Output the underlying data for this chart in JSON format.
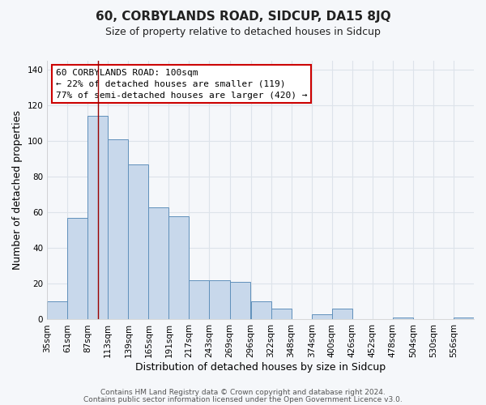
{
  "title": "60, CORBYLANDS ROAD, SIDCUP, DA15 8JQ",
  "subtitle": "Size of property relative to detached houses in Sidcup",
  "xlabel": "Distribution of detached houses by size in Sidcup",
  "ylabel": "Number of detached properties",
  "bar_labels": [
    "35sqm",
    "61sqm",
    "87sqm",
    "113sqm",
    "139sqm",
    "165sqm",
    "191sqm",
    "217sqm",
    "243sqm",
    "269sqm",
    "296sqm",
    "322sqm",
    "348sqm",
    "374sqm",
    "400sqm",
    "426sqm",
    "452sqm",
    "478sqm",
    "504sqm",
    "530sqm",
    "556sqm"
  ],
  "bar_values": [
    10,
    57,
    114,
    101,
    87,
    63,
    58,
    22,
    22,
    21,
    10,
    6,
    0,
    3,
    6,
    0,
    0,
    1,
    0,
    0,
    1
  ],
  "bar_color": "#c8d8eb",
  "bar_edgecolor": "#6090bb",
  "ylim": [
    0,
    145
  ],
  "yticks": [
    0,
    20,
    40,
    60,
    80,
    100,
    120,
    140
  ],
  "red_line_x": 100,
  "annotation_title": "60 CORBYLANDS ROAD: 100sqm",
  "annotation_line1": "← 22% of detached houses are smaller (119)",
  "annotation_line2": "77% of semi-detached houses are larger (420) →",
  "annotation_box_color": "#ffffff",
  "annotation_box_edgecolor": "#cc0000",
  "footer1": "Contains HM Land Registry data © Crown copyright and database right 2024.",
  "footer2": "Contains public sector information licensed under the Open Government Licence v3.0.",
  "background_color": "#f5f7fa",
  "plot_bg_color": "#f5f7fa",
  "grid_color": "#dde3ea",
  "title_fontsize": 11,
  "subtitle_fontsize": 9,
  "axis_label_fontsize": 9,
  "tick_fontsize": 7.5,
  "footer_fontsize": 6.5,
  "annotation_fontsize": 8
}
